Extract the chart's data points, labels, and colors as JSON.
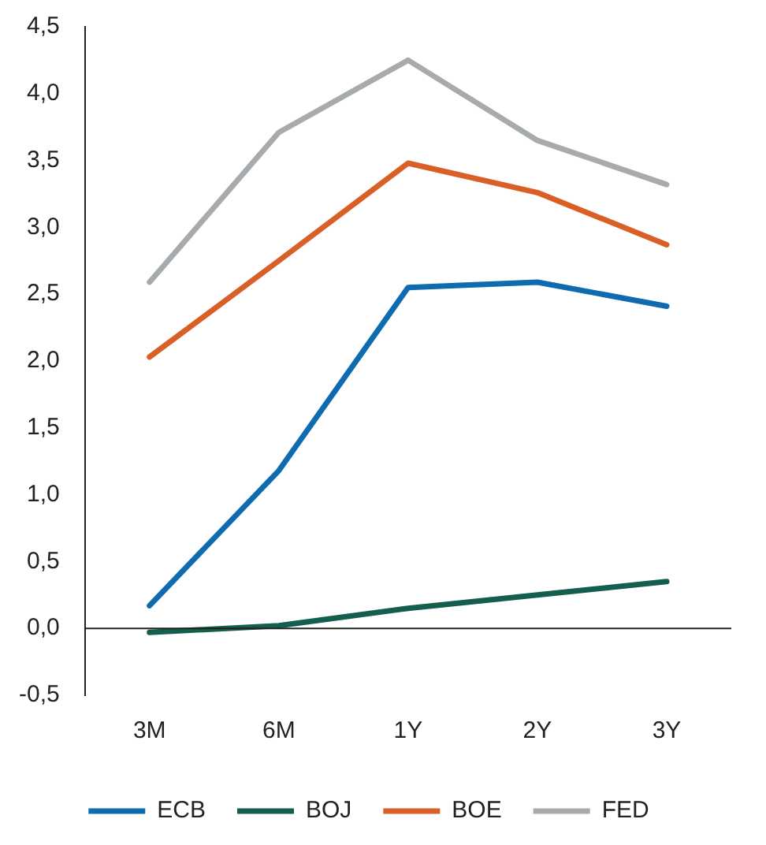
{
  "chart_data": {
    "type": "line",
    "categories": [
      "3M",
      "6M",
      "1Y",
      "2Y",
      "3Y"
    ],
    "series": [
      {
        "name": "ECB",
        "color": "#0f6bb0",
        "values": [
          0.17,
          1.18,
          2.55,
          2.59,
          2.41
        ]
      },
      {
        "name": "BOJ",
        "color": "#135e4c",
        "values": [
          -0.03,
          0.02,
          0.15,
          0.25,
          0.35
        ]
      },
      {
        "name": "BOE",
        "color": "#d95f26",
        "values": [
          2.03,
          2.75,
          3.48,
          3.26,
          2.87
        ]
      },
      {
        "name": "FED",
        "color": "#a7abae",
        "values": [
          2.59,
          3.71,
          4.25,
          3.65,
          3.32
        ]
      }
    ],
    "ylim": [
      -0.5,
      4.5
    ],
    "yticks": [
      {
        "value": -0.5,
        "label": "-0,5"
      },
      {
        "value": 0,
        "label": "0,0"
      },
      {
        "value": 0.5,
        "label": "0,5"
      },
      {
        "value": 1,
        "label": "1,0"
      },
      {
        "value": 1.5,
        "label": "1,5"
      },
      {
        "value": 2,
        "label": "2,0"
      },
      {
        "value": 2.5,
        "label": "2,5"
      },
      {
        "value": 3,
        "label": "3,0"
      },
      {
        "value": 3.5,
        "label": "3,5"
      },
      {
        "value": 4,
        "label": "4,0"
      },
      {
        "value": 4.5,
        "label": "4,5"
      }
    ],
    "ref_lines": [
      {
        "axis": "y",
        "value": 0,
        "color": "#222222"
      }
    ],
    "grid": false,
    "legend": "bottom",
    "marker": "none",
    "line_style": "solid"
  }
}
